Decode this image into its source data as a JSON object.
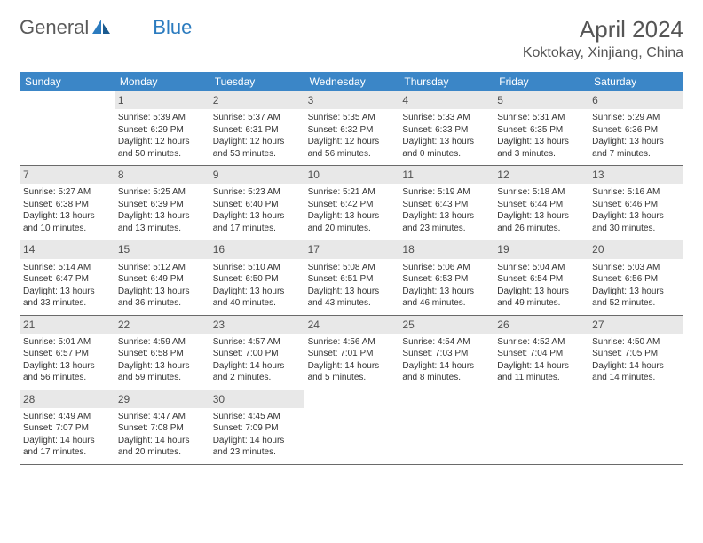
{
  "brand": {
    "name_part1": "General",
    "name_part2": "Blue"
  },
  "title": "April 2024",
  "location": "Koktokay, Xinjiang, China",
  "weekdays": [
    "Sunday",
    "Monday",
    "Tuesday",
    "Wednesday",
    "Thursday",
    "Friday",
    "Saturday"
  ],
  "colors": {
    "header_bg": "#3b86c7",
    "header_text": "#ffffff",
    "daybar_bg": "#e8e8e8",
    "text": "#333333",
    "logo_gray": "#5a5a5a",
    "logo_blue": "#2b7bbf"
  },
  "weeks": [
    [
      {
        "n": "",
        "empty": true
      },
      {
        "n": "1",
        "sunrise": "Sunrise: 5:39 AM",
        "sunset": "Sunset: 6:29 PM",
        "day1": "Daylight: 12 hours",
        "day2": "and 50 minutes."
      },
      {
        "n": "2",
        "sunrise": "Sunrise: 5:37 AM",
        "sunset": "Sunset: 6:31 PM",
        "day1": "Daylight: 12 hours",
        "day2": "and 53 minutes."
      },
      {
        "n": "3",
        "sunrise": "Sunrise: 5:35 AM",
        "sunset": "Sunset: 6:32 PM",
        "day1": "Daylight: 12 hours",
        "day2": "and 56 minutes."
      },
      {
        "n": "4",
        "sunrise": "Sunrise: 5:33 AM",
        "sunset": "Sunset: 6:33 PM",
        "day1": "Daylight: 13 hours",
        "day2": "and 0 minutes."
      },
      {
        "n": "5",
        "sunrise": "Sunrise: 5:31 AM",
        "sunset": "Sunset: 6:35 PM",
        "day1": "Daylight: 13 hours",
        "day2": "and 3 minutes."
      },
      {
        "n": "6",
        "sunrise": "Sunrise: 5:29 AM",
        "sunset": "Sunset: 6:36 PM",
        "day1": "Daylight: 13 hours",
        "day2": "and 7 minutes."
      }
    ],
    [
      {
        "n": "7",
        "sunrise": "Sunrise: 5:27 AM",
        "sunset": "Sunset: 6:38 PM",
        "day1": "Daylight: 13 hours",
        "day2": "and 10 minutes."
      },
      {
        "n": "8",
        "sunrise": "Sunrise: 5:25 AM",
        "sunset": "Sunset: 6:39 PM",
        "day1": "Daylight: 13 hours",
        "day2": "and 13 minutes."
      },
      {
        "n": "9",
        "sunrise": "Sunrise: 5:23 AM",
        "sunset": "Sunset: 6:40 PM",
        "day1": "Daylight: 13 hours",
        "day2": "and 17 minutes."
      },
      {
        "n": "10",
        "sunrise": "Sunrise: 5:21 AM",
        "sunset": "Sunset: 6:42 PM",
        "day1": "Daylight: 13 hours",
        "day2": "and 20 minutes."
      },
      {
        "n": "11",
        "sunrise": "Sunrise: 5:19 AM",
        "sunset": "Sunset: 6:43 PM",
        "day1": "Daylight: 13 hours",
        "day2": "and 23 minutes."
      },
      {
        "n": "12",
        "sunrise": "Sunrise: 5:18 AM",
        "sunset": "Sunset: 6:44 PM",
        "day1": "Daylight: 13 hours",
        "day2": "and 26 minutes."
      },
      {
        "n": "13",
        "sunrise": "Sunrise: 5:16 AM",
        "sunset": "Sunset: 6:46 PM",
        "day1": "Daylight: 13 hours",
        "day2": "and 30 minutes."
      }
    ],
    [
      {
        "n": "14",
        "sunrise": "Sunrise: 5:14 AM",
        "sunset": "Sunset: 6:47 PM",
        "day1": "Daylight: 13 hours",
        "day2": "and 33 minutes."
      },
      {
        "n": "15",
        "sunrise": "Sunrise: 5:12 AM",
        "sunset": "Sunset: 6:49 PM",
        "day1": "Daylight: 13 hours",
        "day2": "and 36 minutes."
      },
      {
        "n": "16",
        "sunrise": "Sunrise: 5:10 AM",
        "sunset": "Sunset: 6:50 PM",
        "day1": "Daylight: 13 hours",
        "day2": "and 40 minutes."
      },
      {
        "n": "17",
        "sunrise": "Sunrise: 5:08 AM",
        "sunset": "Sunset: 6:51 PM",
        "day1": "Daylight: 13 hours",
        "day2": "and 43 minutes."
      },
      {
        "n": "18",
        "sunrise": "Sunrise: 5:06 AM",
        "sunset": "Sunset: 6:53 PM",
        "day1": "Daylight: 13 hours",
        "day2": "and 46 minutes."
      },
      {
        "n": "19",
        "sunrise": "Sunrise: 5:04 AM",
        "sunset": "Sunset: 6:54 PM",
        "day1": "Daylight: 13 hours",
        "day2": "and 49 minutes."
      },
      {
        "n": "20",
        "sunrise": "Sunrise: 5:03 AM",
        "sunset": "Sunset: 6:56 PM",
        "day1": "Daylight: 13 hours",
        "day2": "and 52 minutes."
      }
    ],
    [
      {
        "n": "21",
        "sunrise": "Sunrise: 5:01 AM",
        "sunset": "Sunset: 6:57 PM",
        "day1": "Daylight: 13 hours",
        "day2": "and 56 minutes."
      },
      {
        "n": "22",
        "sunrise": "Sunrise: 4:59 AM",
        "sunset": "Sunset: 6:58 PM",
        "day1": "Daylight: 13 hours",
        "day2": "and 59 minutes."
      },
      {
        "n": "23",
        "sunrise": "Sunrise: 4:57 AM",
        "sunset": "Sunset: 7:00 PM",
        "day1": "Daylight: 14 hours",
        "day2": "and 2 minutes."
      },
      {
        "n": "24",
        "sunrise": "Sunrise: 4:56 AM",
        "sunset": "Sunset: 7:01 PM",
        "day1": "Daylight: 14 hours",
        "day2": "and 5 minutes."
      },
      {
        "n": "25",
        "sunrise": "Sunrise: 4:54 AM",
        "sunset": "Sunset: 7:03 PM",
        "day1": "Daylight: 14 hours",
        "day2": "and 8 minutes."
      },
      {
        "n": "26",
        "sunrise": "Sunrise: 4:52 AM",
        "sunset": "Sunset: 7:04 PM",
        "day1": "Daylight: 14 hours",
        "day2": "and 11 minutes."
      },
      {
        "n": "27",
        "sunrise": "Sunrise: 4:50 AM",
        "sunset": "Sunset: 7:05 PM",
        "day1": "Daylight: 14 hours",
        "day2": "and 14 minutes."
      }
    ],
    [
      {
        "n": "28",
        "sunrise": "Sunrise: 4:49 AM",
        "sunset": "Sunset: 7:07 PM",
        "day1": "Daylight: 14 hours",
        "day2": "and 17 minutes."
      },
      {
        "n": "29",
        "sunrise": "Sunrise: 4:47 AM",
        "sunset": "Sunset: 7:08 PM",
        "day1": "Daylight: 14 hours",
        "day2": "and 20 minutes."
      },
      {
        "n": "30",
        "sunrise": "Sunrise: 4:45 AM",
        "sunset": "Sunset: 7:09 PM",
        "day1": "Daylight: 14 hours",
        "day2": "and 23 minutes."
      },
      {
        "n": "",
        "empty": true
      },
      {
        "n": "",
        "empty": true
      },
      {
        "n": "",
        "empty": true
      },
      {
        "n": "",
        "empty": true
      }
    ]
  ]
}
